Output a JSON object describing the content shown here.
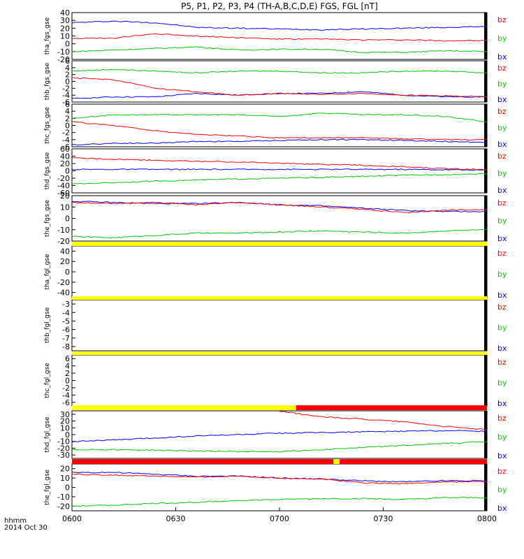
{
  "chart_data": {
    "type": "line",
    "title": "P5, P1, P2, P3, P4 (TH-A,B,C,D,E) FGS, FGL [nT]",
    "x_tick_labels": [
      "0600",
      "0630",
      "0700",
      "0730",
      "0800"
    ],
    "x_axis_label": "hhmm",
    "date_label": "2014 Oct 30",
    "colors": {
      "bx": "#0000ff",
      "by": "#00c800",
      "bz": "#ff0000",
      "bar_yellow": "#ffff00",
      "bar_red": "#ff0000"
    },
    "legend_entries": [
      "bz",
      "by",
      "bx"
    ],
    "panels": [
      {
        "ylabel": "tha_fgs_gse",
        "ylim": [
          -20,
          40
        ],
        "ticks": [
          "-20",
          "-10",
          "0",
          "10",
          "20",
          "30",
          "40"
        ],
        "series": [
          {
            "name": "bx",
            "values": [
              27,
              29,
              27,
              21,
              20,
              19,
              18,
              19,
              20,
              21,
              22
            ]
          },
          {
            "name": "by",
            "values": [
              -10,
              -8,
              -6,
              -4,
              -8,
              -7,
              -7,
              -11,
              -11,
              -9,
              -10
            ]
          },
          {
            "name": "bz",
            "values": [
              7,
              7,
              13,
              10,
              8,
              6,
              6,
              5,
              5,
              4,
              4
            ]
          }
        ]
      },
      {
        "ylabel": "thb_fgs_gse",
        "ylim": [
          -6,
          6
        ],
        "ticks": [
          "-6",
          "-4",
          "-2",
          "0",
          "2",
          "4",
          "6"
        ],
        "series": [
          {
            "name": "bx",
            "values": [
              -5,
              -4.5,
              -4.5,
              -3.5,
              -4,
              -3.5,
              -3.5,
              -3,
              -4,
              -4.5,
              -4.5
            ]
          },
          {
            "name": "by",
            "values": [
              3,
              3.5,
              3,
              2.5,
              3,
              3,
              2.5,
              2.5,
              3,
              3,
              2.5
            ]
          },
          {
            "name": "bz",
            "values": [
              1,
              0.5,
              -2,
              -3,
              -4,
              -3.5,
              -3.8,
              -3.5,
              -4,
              -4.2,
              -4.5
            ]
          }
        ]
      },
      {
        "ylabel": "thc_fgs_gse",
        "ylim": [
          -6,
          6
        ],
        "ticks": [
          "-6",
          "-4",
          "-2",
          "0",
          "2",
          "4",
          "6"
        ],
        "series": [
          {
            "name": "bx",
            "values": [
              -5.5,
              -5,
              -5,
              -4.5,
              -4.5,
              -4.2,
              -4,
              -4,
              -4.2,
              -4.5,
              -4.8
            ]
          },
          {
            "name": "by",
            "values": [
              2,
              3,
              3,
              3,
              3,
              2.5,
              3.5,
              3,
              3,
              2.5,
              1
            ]
          },
          {
            "name": "bz",
            "values": [
              1,
              0,
              -1.5,
              -2.5,
              -3,
              -3.5,
              -3.5,
              -3.5,
              -3.8,
              -4,
              -4
            ]
          }
        ]
      },
      {
        "ylabel": "thd_fgs_gse",
        "ylim": [
          -60,
          60
        ],
        "ticks": [
          "-60",
          "-40",
          "-20",
          "0",
          "20",
          "40",
          "60"
        ],
        "series": [
          {
            "name": "bx",
            "values": [
              4,
              4,
              4,
              4,
              4,
              4,
              4,
              4,
              4,
              3,
              2
            ]
          },
          {
            "name": "by",
            "values": [
              -36,
              -32,
              -28,
              -25,
              -22,
              -20,
              -18,
              -15,
              -12,
              -10,
              -8
            ]
          },
          {
            "name": "bz",
            "values": [
              35,
              32,
              29,
              26,
              24,
              21,
              18,
              15,
              11,
              6,
              4
            ]
          }
        ]
      },
      {
        "ylabel": "the_fgs_gse",
        "ylim": [
          -20,
          20
        ],
        "ticks": [
          "-20",
          "-10",
          "0",
          "10",
          "20"
        ],
        "series": [
          {
            "name": "bx",
            "values": [
              15,
              14,
              13,
              13,
              14,
              12,
              11,
              9,
              7,
              6,
              6
            ]
          },
          {
            "name": "by",
            "values": [
              -16,
              -17,
              -15,
              -13,
              -13,
              -12,
              -11,
              -12,
              -13,
              -11,
              -10
            ]
          },
          {
            "name": "bz",
            "values": [
              14,
              13,
              14,
              12,
              14,
              12,
              10,
              8,
              5,
              7,
              8
            ]
          }
        ]
      },
      {
        "ylabel": "tha_fgl_gse",
        "ylim": [
          -50,
          50
        ],
        "ticks": [
          "-40",
          "-20",
          "0",
          "20",
          "40"
        ],
        "series": []
      },
      {
        "ylabel": "thb_fgl_gse",
        "ylim": [
          -8.5,
          -2.5
        ],
        "ticks": [
          "-8",
          "-7",
          "-6",
          "-5",
          "-4",
          "-3"
        ],
        "series": []
      },
      {
        "ylabel": "thc_fgl_gse",
        "ylim": [
          -7,
          7
        ],
        "ticks": [
          "-6",
          "-4",
          "-2",
          "0",
          "2",
          "4",
          "6"
        ],
        "series": []
      },
      {
        "ylabel": "thd_fgl_gse",
        "ylim": [
          -35,
          35
        ],
        "ticks": [
          "-30",
          "-20",
          "-10",
          "0",
          "10",
          "20",
          "30"
        ],
        "series": [
          {
            "name": "bx",
            "values": [
              -10,
              -8,
              -5,
              -2,
              0,
              2,
              3,
              4,
              5,
              6,
              5
            ]
          },
          {
            "name": "by",
            "values": [
              -22,
              -22,
              -23,
              -24,
              -25,
              -25,
              -22,
              -19,
              -16,
              -13,
              -10
            ]
          },
          {
            "name": "bz",
            "values": [
              null,
              null,
              null,
              null,
              null,
              35,
              26,
              23,
              19,
              12,
              7
            ]
          }
        ]
      },
      {
        "ylabel": "the_fgl_gse",
        "ylim": [
          -25,
          25
        ],
        "ticks": [
          "-20",
          "-10",
          "0",
          "10",
          "20"
        ],
        "series": [
          {
            "name": "bx",
            "values": [
              16,
              16,
              14,
              12,
              12,
              10,
              9,
              7,
              6,
              7,
              7
            ]
          },
          {
            "name": "by",
            "values": [
              -20,
              -19,
              -17,
              -16,
              -14,
              -13,
              -12,
              -12,
              -13,
              -11,
              -11
            ]
          },
          {
            "name": "bz",
            "values": [
              14,
              13,
              12,
              11,
              12,
              10,
              9,
              5,
              4,
              6,
              6
            ]
          }
        ]
      }
    ],
    "bars": [
      {
        "segments": [
          {
            "color": "yellow",
            "from": 0,
            "to": 1
          }
        ]
      },
      {
        "segments": [
          {
            "color": "yellow",
            "from": 0,
            "to": 1
          }
        ]
      },
      {
        "segments": [
          {
            "color": "yellow",
            "from": 0,
            "to": 1
          }
        ]
      },
      {
        "segments": [
          {
            "color": "yellow",
            "from": 0,
            "to": 0.54
          },
          {
            "color": "red",
            "from": 0.54,
            "to": 1
          }
        ]
      },
      {
        "segments": [
          {
            "color": "red",
            "from": 0,
            "to": 0.63
          },
          {
            "color": "yellow",
            "from": 0.63,
            "to": 0.645
          },
          {
            "color": "red",
            "from": 0.645,
            "to": 1
          }
        ]
      }
    ]
  }
}
